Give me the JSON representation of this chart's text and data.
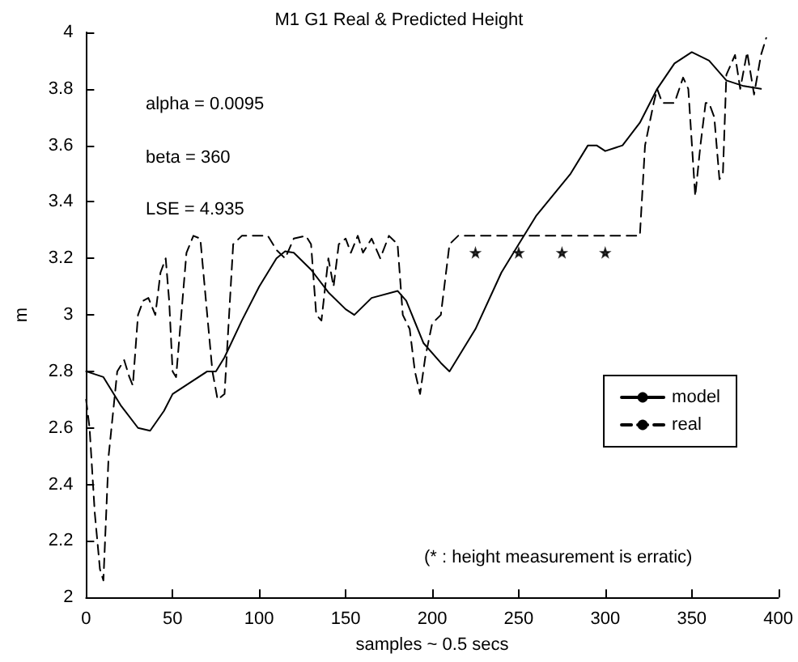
{
  "chart_data": {
    "type": "line",
    "title": "M1 G1 Real & Predicted Height",
    "xlabel": "samples ~ 0.5 secs",
    "ylabel": "m",
    "annotations": [
      "alpha = 0.0095",
      "beta = 360",
      "LSE = 4.935",
      "(* : height measurement is erratic)"
    ],
    "xlim": [
      0,
      400
    ],
    "xticks": [
      0,
      50,
      100,
      150,
      200,
      250,
      300,
      350,
      400
    ],
    "ylim": [
      2,
      4
    ],
    "yticks": [
      2,
      2.2,
      2.4,
      2.6,
      2.8,
      3,
      3.2,
      3.4,
      3.6,
      3.8,
      4
    ],
    "grid": false,
    "legend": "right",
    "marker": "none",
    "series": [
      {
        "name": "model",
        "color": "#000000",
        "line_style": "solid",
        "x": [
          0,
          10,
          20,
          30,
          37,
          45,
          50,
          60,
          70,
          75,
          80,
          90,
          100,
          110,
          115,
          120,
          130,
          140,
          150,
          155,
          165,
          180,
          185,
          195,
          205,
          210,
          215,
          225,
          240,
          250,
          260,
          280,
          290,
          295,
          300,
          310,
          320,
          330,
          340,
          350,
          360,
          370,
          380,
          390
        ],
        "values": [
          2.8,
          2.78,
          2.68,
          2.6,
          2.59,
          2.66,
          2.72,
          2.76,
          2.8,
          2.8,
          2.85,
          2.98,
          3.1,
          3.2,
          3.225,
          3.22,
          3.16,
          3.08,
          3.02,
          3.0,
          3.06,
          3.085,
          3.05,
          2.9,
          2.83,
          2.8,
          2.85,
          2.95,
          3.15,
          3.25,
          3.35,
          3.5,
          3.6,
          3.6,
          3.58,
          3.6,
          3.68,
          3.8,
          3.89,
          3.93,
          3.9,
          3.83,
          3.81,
          3.8
        ]
      },
      {
        "name": "real",
        "color": "#000000",
        "line_style": "dashed",
        "x": [
          0,
          2,
          5,
          8,
          10,
          13,
          15,
          18,
          22,
          25,
          27,
          30,
          33,
          36,
          40,
          43,
          46,
          48,
          50,
          52,
          55,
          58,
          62,
          66,
          70,
          73,
          76,
          80,
          85,
          90,
          105,
          110,
          115,
          120,
          127,
          130,
          133,
          136,
          140,
          143,
          146,
          150,
          153,
          157,
          160,
          165,
          170,
          175,
          180,
          183,
          187,
          190,
          193,
          196,
          200,
          205,
          210,
          215,
          320,
          323,
          328,
          330,
          333,
          340,
          345,
          348,
          352,
          355,
          358,
          360,
          363,
          366,
          368,
          370,
          375,
          378,
          382,
          386,
          390,
          393
        ],
        "values": [
          2.7,
          2.6,
          2.3,
          2.1,
          2.06,
          2.5,
          2.62,
          2.8,
          2.84,
          2.78,
          2.75,
          3.0,
          3.05,
          3.06,
          3.0,
          3.15,
          3.2,
          3.05,
          2.8,
          2.78,
          3.0,
          3.22,
          3.28,
          3.27,
          3.0,
          2.8,
          2.7,
          2.72,
          3.25,
          3.28,
          3.28,
          3.23,
          3.2,
          3.27,
          3.28,
          3.25,
          3.0,
          2.98,
          3.2,
          3.1,
          3.25,
          3.27,
          3.22,
          3.28,
          3.22,
          3.27,
          3.2,
          3.28,
          3.25,
          3.0,
          2.95,
          2.8,
          2.72,
          2.85,
          2.97,
          3.0,
          3.25,
          3.28,
          3.28,
          3.6,
          3.75,
          3.8,
          3.75,
          3.75,
          3.84,
          3.8,
          3.42,
          3.6,
          3.75,
          3.75,
          3.7,
          3.48,
          3.5,
          3.85,
          3.92,
          3.8,
          3.93,
          3.78,
          3.92,
          3.98
        ]
      },
      {
        "type": "scatter",
        "marker": "star",
        "color": "#000000",
        "x": [
          225,
          250,
          275,
          300
        ],
        "values": [
          3.22,
          3.22,
          3.22,
          3.22
        ]
      }
    ]
  }
}
